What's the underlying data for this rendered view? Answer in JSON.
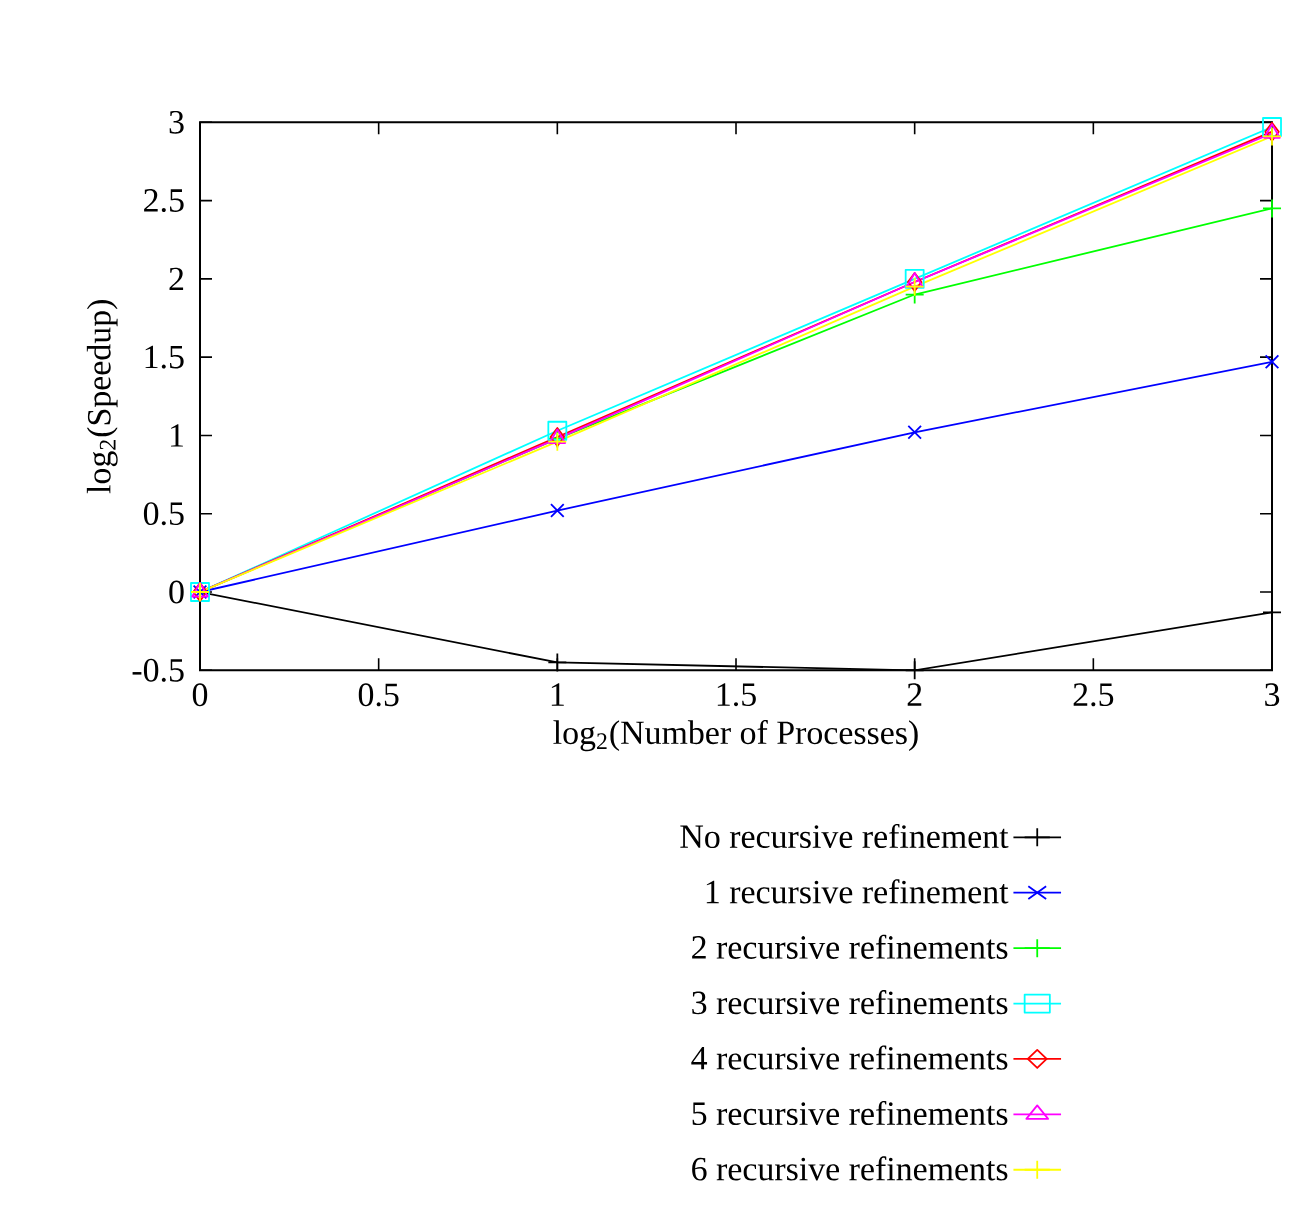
{
  "chart_data": {
    "type": "line",
    "xlabel": "log$_{2}$(Number of Processes)",
    "ylabel": "log$_{2}$(Speedup)",
    "x": [
      0,
      1,
      2,
      3
    ],
    "series": [
      {
        "name": "No recursive refinement",
        "color": "#000000",
        "marker": "cross",
        "values": [
          0,
          -0.45,
          -0.5,
          -0.13
        ]
      },
      {
        "name": "1 recursive refinement",
        "color": "#0000ff",
        "marker": "x",
        "values": [
          0,
          0.52,
          1.02,
          1.47
        ]
      },
      {
        "name": "2 recursive refinements",
        "color": "#00ff00",
        "marker": "cross",
        "values": [
          0,
          0.98,
          1.9,
          2.45
        ]
      },
      {
        "name": "3 recursive refinements",
        "color": "#00ffff",
        "marker": "square",
        "values": [
          0,
          1.03,
          2.0,
          2.97
        ]
      },
      {
        "name": "4 recursive refinements",
        "color": "#ff0000",
        "marker": "diamond",
        "values": [
          0,
          0.99,
          1.98,
          2.94
        ]
      },
      {
        "name": "5 recursive refinements",
        "color": "#ff00ff",
        "marker": "triangle",
        "values": [
          0,
          0.98,
          1.98,
          2.93
        ]
      },
      {
        "name": "6 recursive refinements",
        "color": "#ffff00",
        "marker": "cross",
        "values": [
          0,
          0.96,
          1.95,
          2.91
        ]
      }
    ],
    "xlim": [
      0,
      3
    ],
    "ylim": [
      -0.5,
      3
    ],
    "xticks": [
      0,
      0.5,
      1,
      1.5,
      2,
      2.5,
      3
    ],
    "yticks": [
      -0.5,
      0,
      0.5,
      1,
      1.5,
      2,
      2.5,
      3
    ],
    "legend": "bottom",
    "line_style": "solid"
  }
}
